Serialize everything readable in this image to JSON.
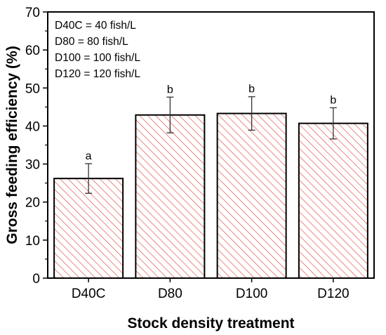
{
  "chart_data": {
    "type": "bar",
    "title": "",
    "xlabel": "Stock density treatment",
    "ylabel": "Gross feeding efficiency (%)",
    "ylim": [
      0,
      70
    ],
    "yticks": [
      0,
      10,
      20,
      30,
      40,
      50,
      60,
      70
    ],
    "categories": [
      "D40C",
      "D80",
      "D100",
      "D120"
    ],
    "series": [
      {
        "values": [
          26.2,
          42.9,
          43.3,
          40.7
        ],
        "error": [
          3.9,
          4.7,
          4.4,
          4.1
        ],
        "significance": [
          "a",
          "b",
          "b",
          "b"
        ]
      }
    ],
    "legend_notes": [
      "D40C = 40 fish/L",
      "D80 = 80 fish/L",
      "D100 = 100 fish/L",
      "D120 = 120 fish/L"
    ],
    "legend_placement": "top-left",
    "grid": false,
    "bar_fill": "hatched",
    "colors": {
      "hatch": "#e0483e",
      "bar_edge": "#000000",
      "axis": "#000000"
    }
  }
}
